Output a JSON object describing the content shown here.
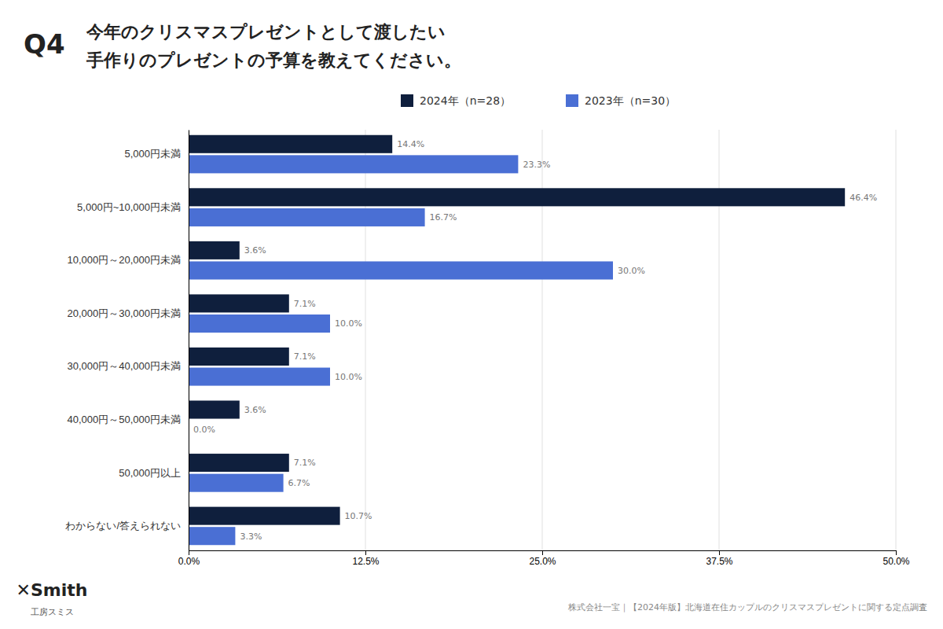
{
  "chart_data": {
    "type": "bar",
    "orientation": "horizontal",
    "title": "今年のクリスマスプレゼントとして渡したい",
    "subtitle": "手作りのプレゼントの予算を教えてください。",
    "annotations": [
      "Q4",
      "✕Smith",
      "工房スミス",
      "株式会社一宝｜【2024年版】北海道在住カップルのクリスマスプレゼントに関する定点調査"
    ],
    "categories": [
      "5,000円未満",
      "5,000円~10,000円未満",
      "10,000円～20,000円未満",
      "20,000円～30,000円未満",
      "30,000円～40,000円未満",
      "40,000円～50,000円未満",
      "50,000円以上",
      "わからない/答えられない"
    ],
    "series": [
      {
        "name": "2024年（n=28）",
        "color": "#0f1f3d",
        "values": [
          14.4,
          46.4,
          3.6,
          7.1,
          7.1,
          3.6,
          7.1,
          10.7
        ],
        "value_labels": [
          "14.4%",
          "46.4%",
          "3.6%",
          "7.1%",
          "7.1%",
          "3.6%",
          "7.1%",
          "10.7%"
        ]
      },
      {
        "name": "2023年（n=30）",
        "color": "#4a6fd4",
        "values": [
          23.3,
          16.7,
          30.0,
          10.0,
          10.0,
          0.0,
          6.7,
          3.3
        ],
        "value_labels": [
          "23.3%",
          "16.7%",
          "30.0%",
          "10.0%",
          "10.0%",
          "0.0%",
          "6.7%",
          "3.3%"
        ]
      }
    ],
    "xlim": [
      0,
      50
    ],
    "xticks": [
      {
        "value": 0,
        "label": "0.0%"
      },
      {
        "value": 12.5,
        "label": "12.5%"
      },
      {
        "value": 25.0,
        "label": "25.0%"
      },
      {
        "value": 37.5,
        "label": "37.5%"
      },
      {
        "value": 50.0,
        "label": "50.0%"
      }
    ],
    "grid": true,
    "legend": "top",
    "data_labels": true
  }
}
